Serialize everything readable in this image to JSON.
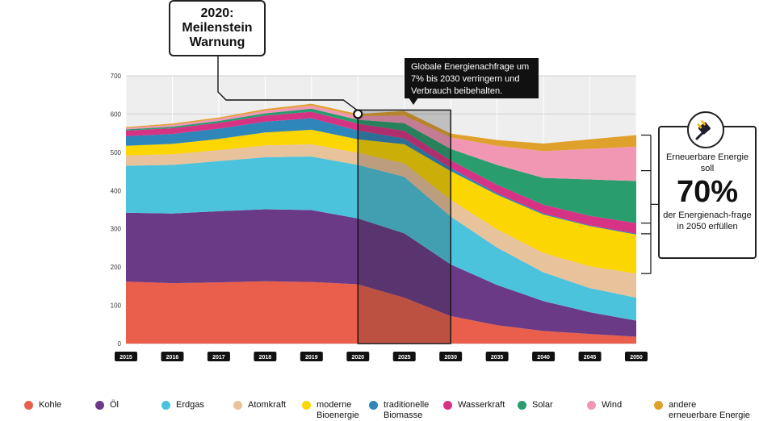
{
  "milestone": {
    "text": "2020:\nMeilenstein\nWarnung"
  },
  "info_box": {
    "text": "Globale Energienachfrage um 7% bis 2030 verringern und Verbrauch beibehalten."
  },
  "renewables_box": {
    "line1": "Erneuerbare Energie soll",
    "big": "70%",
    "line2": "der Energienach-frage in 2050 erfüllen"
  },
  "icons": {
    "plug": "plug-icon"
  },
  "colors": {
    "Kohle": "#e95f4b",
    "Öl": "#6b3a86",
    "Erdgas": "#4cc3dc",
    "Atomkraft": "#e8c29a",
    "moderne Bioenergie": "#fcd600",
    "traditionelle Biomasse": "#2f86b8",
    "Wasserkraft": "#d63384",
    "Solar": "#2a9d6e",
    "Wind": "#f197b4",
    "andere erneuerbare Energie": "#e0a12c",
    "highlight_fill": "#222222",
    "highlight_stroke": "#111111",
    "tick_bg": "#111111",
    "grid": "#d0d0d0"
  },
  "chart_data": {
    "type": "area",
    "stacked": true,
    "title": "",
    "xlabel": "",
    "ylabel": "",
    "x": [
      "2015",
      "2016",
      "2017",
      "2018",
      "2019",
      "2020",
      "2025",
      "2030",
      "2035",
      "2040",
      "2045",
      "2050"
    ],
    "ylim": [
      0,
      700
    ],
    "yticks": [
      0,
      100,
      200,
      300,
      400,
      500,
      600,
      700
    ],
    "grid": true,
    "legend": "bottom",
    "highlight_range": [
      "2020",
      "2030"
    ],
    "milestone_x": "2020",
    "series": [
      {
        "name": "Kohle",
        "values": [
          162,
          158,
          160,
          163,
          161,
          155,
          120,
          72,
          48,
          33,
          25,
          18
        ]
      },
      {
        "name": "Öl",
        "values": [
          180,
          182,
          186,
          188,
          188,
          172,
          168,
          135,
          105,
          78,
          57,
          42
        ]
      },
      {
        "name": "Erdgas",
        "values": [
          123,
          127,
          131,
          136,
          140,
          140,
          148,
          125,
          98,
          75,
          63,
          60
        ]
      },
      {
        "name": "Atomkraft",
        "values": [
          27,
          28,
          29,
          31,
          32,
          32,
          35,
          44,
          48,
          51,
          57,
          63
        ]
      },
      {
        "name": "moderne Bioenergie",
        "values": [
          25,
          27,
          29,
          34,
          38,
          35,
          50,
          75,
          90,
          100,
          105,
          102
        ]
      },
      {
        "name": "traditionelle Biomasse",
        "values": [
          25,
          26,
          27,
          28,
          30,
          23,
          15,
          8,
          4,
          3,
          2,
          2
        ]
      },
      {
        "name": "Wasserkraft",
        "values": [
          15,
          15,
          15,
          16,
          17,
          18,
          20,
          20,
          22,
          23,
          25,
          28
        ]
      },
      {
        "name": "Solar",
        "values": [
          3,
          4,
          5,
          6,
          8,
          10,
          20,
          30,
          52,
          70,
          95,
          110
        ]
      },
      {
        "name": "Wind",
        "values": [
          4,
          5,
          6,
          7,
          8,
          10,
          20,
          30,
          50,
          70,
          80,
          90
        ]
      },
      {
        "name": "andere erneuerbare Energie",
        "values": [
          2,
          3,
          3,
          4,
          5,
          5,
          12,
          10,
          15,
          20,
          25,
          30
        ]
      }
    ]
  },
  "legend": [
    {
      "label": "Kohle",
      "key": "Kohle"
    },
    {
      "label": "Öl",
      "key": "Öl"
    },
    {
      "label": "Erdgas",
      "key": "Erdgas"
    },
    {
      "label": "Atomkraft",
      "key": "Atomkraft"
    },
    {
      "label": "moderne\nBioenergie",
      "key": "moderne Bioenergie"
    },
    {
      "label": "traditionelle\nBiomasse",
      "key": "traditionelle Biomasse"
    },
    {
      "label": "Wasserkraft",
      "key": "Wasserkraft"
    },
    {
      "label": "Solar",
      "key": "Solar"
    },
    {
      "label": "Wind",
      "key": "Wind"
    },
    {
      "label": "andere\nerneuerbare Energie",
      "key": "andere erneuerbare Energie"
    }
  ]
}
